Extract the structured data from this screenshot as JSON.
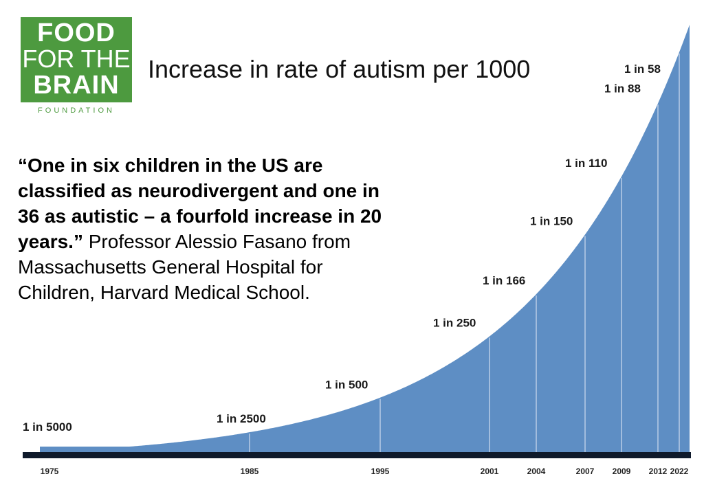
{
  "logo": {
    "line1": "FOOD",
    "line2": "FOR THE",
    "line3": "BRAIN",
    "subtitle": "FOUNDATION",
    "color": "#4d9a3f"
  },
  "title": "Increase in rate of autism per 1000",
  "quote": {
    "text": "“One in six children in the US are classified as neurodivergent and one in 36 as autistic – a fourfold increase in 20 years.”",
    "attribution": "Professor Alessio Fasano from Massachusetts General Hospital for Children, Harvard Medical School."
  },
  "chart_data": {
    "type": "area",
    "title": "Increase in rate of autism per 1000",
    "area_color": "#5e8ec4",
    "baseline_color": "#0f1a2b",
    "x": [
      1975,
      1985,
      1995,
      2001,
      2004,
      2007,
      2009,
      2012,
      2022
    ],
    "x_labels": [
      "1975",
      "1985",
      "1995",
      "2001",
      "2004",
      "2007",
      "2009",
      "2012",
      "2022"
    ],
    "data_labels": [
      "1 in 5000",
      "1 in 2500",
      "1 in 500",
      "1 in 250",
      "1 in 166",
      "1 in 150",
      "1 in 110",
      "1 in 88",
      "1 in 58"
    ],
    "values_per_1000": [
      0.2,
      0.4,
      2,
      4,
      6.02,
      6.67,
      9.09,
      11.36,
      17.24
    ],
    "grid": false
  }
}
